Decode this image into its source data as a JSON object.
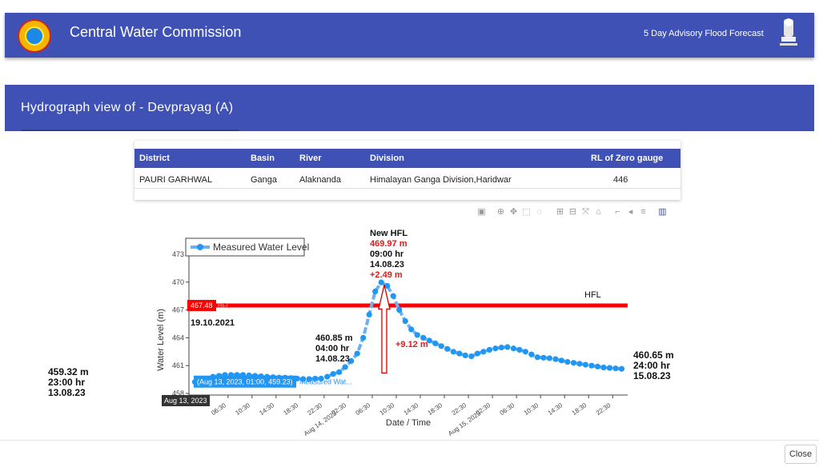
{
  "app": {
    "title": "Central Water Commission",
    "advisory_link": "5 Day Advisory Flood Forecast"
  },
  "page": {
    "heading": "Hydrograph view of - Devprayag (A)"
  },
  "station_table": {
    "headers": [
      "District",
      "Basin",
      "River",
      "Division",
      "RL of Zero gauge"
    ],
    "row": [
      "PAURI GARHWAL",
      "Ganga",
      "Alaknanda",
      "Himalayan Ganga Division,Haridwar",
      "446"
    ]
  },
  "chart_data": {
    "type": "line",
    "xlabel": "Date / Time",
    "ylabel": "Water Level (m)",
    "ylim": [
      458,
      473
    ],
    "y_ticks": [
      "458",
      "461",
      "464",
      "467",
      "470",
      "473"
    ],
    "x_ticks": [
      "Aug 13, 2023",
      "06:30",
      "10:30",
      "14:30",
      "18:30",
      "22:30",
      "02:30\nAug 14, 2023",
      "06:30",
      "10:30",
      "14:30",
      "18:30",
      "22:30",
      "02:30\nAug 15, 2023",
      "06:30",
      "10:30",
      "14:30",
      "18:30",
      "22:30"
    ],
    "legend": "Measured Water Level",
    "series": [
      {
        "name": "Measured Water Level",
        "x_hours": [
          1,
          2,
          3,
          4,
          5,
          6,
          7,
          8,
          9,
          10,
          11,
          12,
          13,
          14,
          15,
          16,
          17,
          18,
          19,
          20,
          21,
          22,
          23,
          24,
          25,
          26,
          27,
          28,
          29,
          30,
          31,
          32,
          33,
          34,
          35,
          36,
          37,
          38,
          39,
          40,
          41,
          42,
          43,
          44,
          45,
          46,
          47,
          48,
          49,
          50,
          51,
          52,
          53,
          54,
          55,
          56,
          57,
          58,
          59,
          60,
          61,
          62,
          63,
          64,
          65,
          66,
          67,
          68,
          69,
          70,
          71,
          72
        ],
        "values": [
          459.23,
          459.4,
          459.6,
          459.8,
          459.9,
          460.0,
          460.0,
          460.0,
          460.0,
          459.95,
          459.9,
          459.85,
          459.8,
          459.75,
          459.7,
          459.7,
          459.65,
          459.6,
          459.55,
          459.55,
          459.6,
          459.6,
          459.8,
          460.1,
          460.3,
          460.85,
          461.5,
          462.3,
          464.0,
          466.5,
          469.0,
          469.97,
          469.6,
          468.5,
          467.0,
          465.8,
          464.9,
          464.3,
          464.0,
          463.7,
          463.4,
          463.1,
          462.8,
          462.5,
          462.3,
          462.1,
          462.0,
          462.3,
          462.5,
          462.7,
          462.85,
          462.95,
          463.0,
          462.85,
          462.7,
          462.5,
          462.2,
          461.9,
          461.85,
          461.8,
          461.7,
          461.55,
          461.4,
          461.3,
          461.2,
          461.1,
          461.0,
          460.9,
          460.8,
          460.75,
          460.7,
          460.65
        ]
      }
    ],
    "hfl": {
      "label": "HFL",
      "value": 467.48,
      "value_label": "467.48",
      "tag": "HFL",
      "date": "19.10.2021"
    },
    "annotations": {
      "new_hfl_title": "New HFL",
      "new_hfl_value": "469.97 m",
      "new_hfl_time": "09:00 hr",
      "new_hfl_date": "14.08.23",
      "new_hfl_delta": "+2.49 m",
      "rise": "+9.12 m",
      "start_value": "459.32 m",
      "start_time": "23:00 hr",
      "start_date": "13.08.23",
      "mid_value": "460.85 m",
      "mid_time": "04:00 hr",
      "mid_date": "14.08.23",
      "end_value": "460.65 m",
      "end_time": "24:00 hr",
      "end_date": "15.08.23",
      "hover_label": "(Aug 13, 2023, 01:00, 459.23)",
      "hover_series": "Measured Wat...",
      "hover_x": "Aug 13, 2023"
    },
    "colors": {
      "line": "#6ab0f3",
      "marker": "#2196f3",
      "hfl": "#ff0000",
      "annotation_red": "#e01b1b"
    }
  },
  "footer": {
    "close_label": "Close"
  }
}
